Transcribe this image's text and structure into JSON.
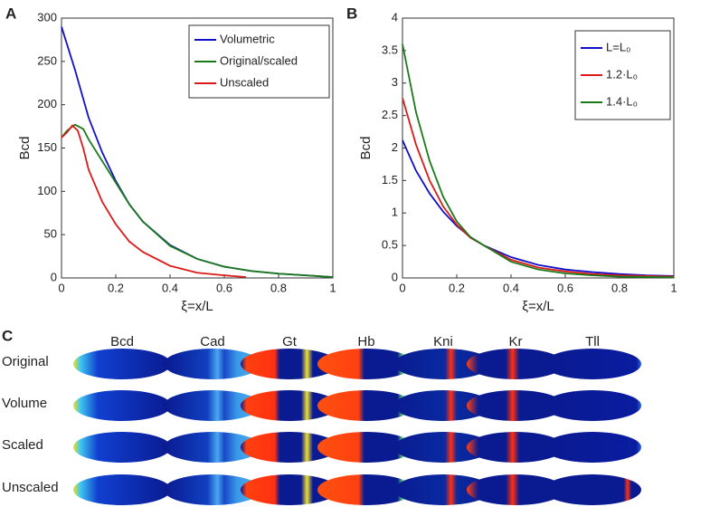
{
  "chart_data": [
    {
      "type": "line",
      "panel_label": "A",
      "x_label": "ξ=x/L",
      "y_label": "Bcd",
      "xlim": [
        0,
        1
      ],
      "xticks": [
        0,
        0.2,
        0.4,
        0.6,
        0.8,
        1
      ],
      "ylim": [
        0,
        300
      ],
      "yticks": [
        0,
        50,
        100,
        150,
        200,
        250,
        300
      ],
      "legend": "upper right",
      "series": [
        {
          "name": "Volumetric",
          "color": "#1010c8",
          "x": [
            0,
            0.05,
            0.1,
            0.15,
            0.2,
            0.25,
            0.3,
            0.4,
            0.5,
            0.6,
            0.7,
            0.8,
            0.9,
            1
          ],
          "values": [
            290,
            240,
            185,
            145,
            112,
            85,
            65,
            38,
            22,
            13,
            8,
            5,
            3,
            1
          ]
        },
        {
          "name": "Original/scaled",
          "color": "#1a7a1a",
          "x": [
            0,
            0.02,
            0.05,
            0.08,
            0.1,
            0.15,
            0.2,
            0.25,
            0.3,
            0.4,
            0.5,
            0.6,
            0.7,
            0.8,
            0.9,
            1
          ],
          "values": [
            162,
            170,
            177,
            172,
            160,
            135,
            110,
            85,
            65,
            37,
            22,
            13,
            8,
            5,
            3,
            1
          ]
        },
        {
          "name": "Unscaled",
          "color": "#dd1a1a",
          "x": [
            0,
            0.02,
            0.04,
            0.06,
            0.08,
            0.1,
            0.15,
            0.2,
            0.25,
            0.3,
            0.4,
            0.5,
            0.6,
            0.68
          ],
          "values": [
            162,
            168,
            176,
            170,
            150,
            125,
            88,
            62,
            42,
            30,
            14,
            6,
            3,
            1
          ]
        }
      ]
    },
    {
      "type": "line",
      "panel_label": "B",
      "x_label": "ξ=x/L",
      "y_label": "Bcd",
      "xlim": [
        0,
        1
      ],
      "xticks": [
        0,
        0.2,
        0.4,
        0.6,
        0.8,
        1
      ],
      "ylim": [
        0,
        4
      ],
      "yticks": [
        0,
        0.5,
        1,
        1.5,
        2,
        2.5,
        3,
        3.5,
        4
      ],
      "legend": "upper right",
      "x": [
        0,
        0.05,
        0.1,
        0.15,
        0.2,
        0.25,
        0.3,
        0.4,
        0.5,
        0.6,
        0.7,
        0.8,
        0.9,
        1
      ],
      "series": [
        {
          "name": "L=L₀",
          "color": "#1010c8",
          "values": [
            2.12,
            1.65,
            1.3,
            1.02,
            0.8,
            0.63,
            0.5,
            0.32,
            0.2,
            0.13,
            0.09,
            0.06,
            0.04,
            0.03
          ]
        },
        {
          "name": "1.2·L₀",
          "color": "#dd1a1a",
          "values": [
            2.77,
            2.05,
            1.5,
            1.1,
            0.82,
            0.62,
            0.5,
            0.28,
            0.16,
            0.1,
            0.06,
            0.04,
            0.03,
            0.02
          ]
        },
        {
          "name": "1.4·L₀",
          "color": "#1a7a1a",
          "values": [
            3.6,
            2.55,
            1.8,
            1.25,
            0.87,
            0.63,
            0.5,
            0.25,
            0.13,
            0.07,
            0.04,
            0.02,
            0.015,
            0.01
          ]
        }
      ]
    }
  ],
  "expression_grid": {
    "panel_label": "C",
    "columns": [
      "Bcd",
      "Cad",
      "Gt",
      "Hb",
      "Kni",
      "Kr",
      "Tll"
    ],
    "rows": [
      "Original",
      "Volume",
      "Scaled",
      "Unscaled"
    ]
  }
}
